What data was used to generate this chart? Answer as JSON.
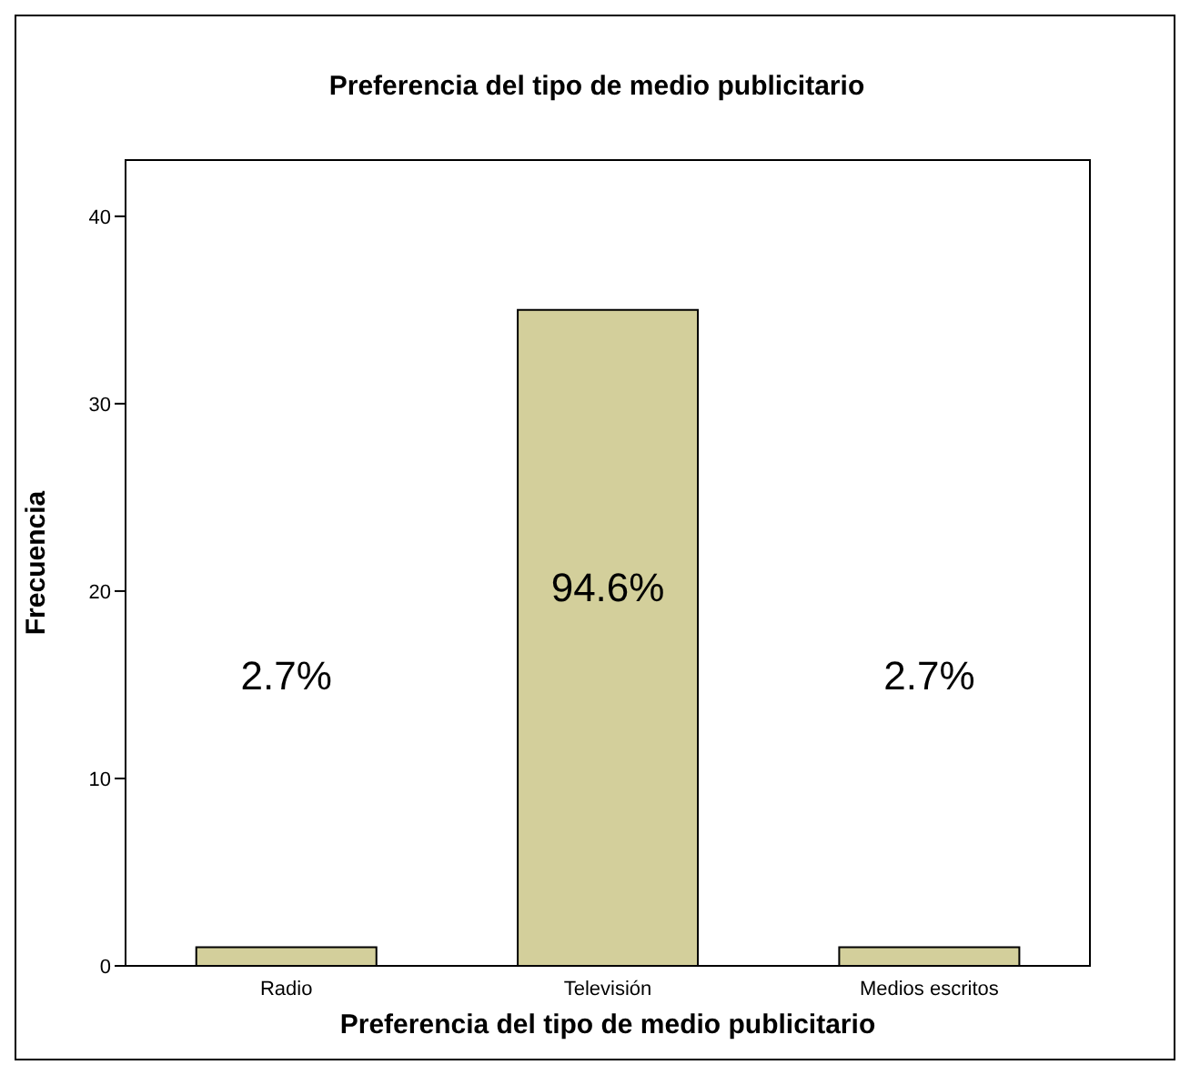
{
  "chart_data": {
    "type": "bar",
    "title": "Preferencia del tipo de medio publicitario",
    "xlabel": "Preferencia del tipo de medio publicitario",
    "ylabel": "Frecuencia",
    "categories": [
      "Radio",
      "Televisión",
      "Medios escritos"
    ],
    "values": [
      1,
      35,
      1
    ],
    "annotations": [
      "2.7%",
      "94.6%",
      "2.7%"
    ],
    "color": "#d3cf9b",
    "ylim": [
      0,
      43
    ],
    "yticks": [
      0,
      10,
      20,
      30,
      40
    ],
    "grid": false,
    "legend": false
  }
}
